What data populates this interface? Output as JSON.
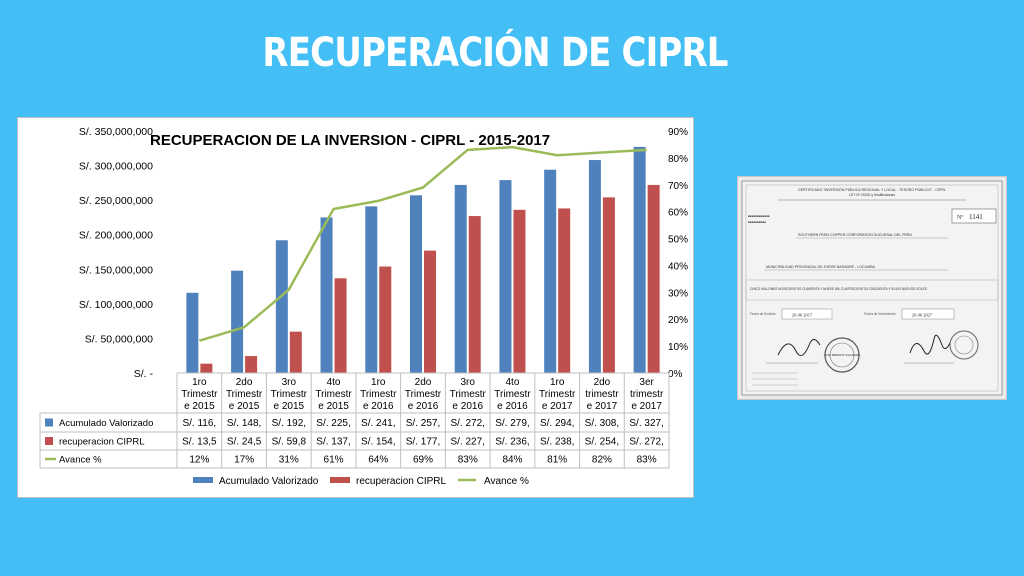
{
  "slide": {
    "title": "RECUPERACIÓN DE CIPRL"
  },
  "chart_data": {
    "type": "bar",
    "title": "RECUPERACION DE LA INVERSION - CIPRL - 2015-2017",
    "categories": [
      [
        "1ro",
        "Trimestr",
        "e 2015"
      ],
      [
        "2do",
        "Trimestr",
        "e 2015"
      ],
      [
        "3ro",
        "Trimestr",
        "e 2015"
      ],
      [
        "4to",
        "Trimestr",
        "e 2015"
      ],
      [
        "1ro",
        "Trimestr",
        "e 2016"
      ],
      [
        "2do",
        "Trimestr",
        "e 2016"
      ],
      [
        "3ro",
        "Trimestr",
        "e 2016"
      ],
      [
        "4to",
        "Trimestr",
        "e 2016"
      ],
      [
        "1ro",
        "Trimestr",
        "e 2017"
      ],
      [
        "2do",
        "trimestr",
        "e 2017"
      ],
      [
        "3er",
        "trimestr",
        "e 2017"
      ]
    ],
    "y_left": {
      "ticks": [
        "S/. 350,000,000",
        "S/. 300,000,000",
        "S/. 250,000,000",
        "S/. 200,000,000",
        "S/. 150,000,000",
        "S/. 100,000,000",
        "S/. 50,000,000",
        "S/. -"
      ],
      "ylim": [
        0,
        350000000
      ]
    },
    "y_right": {
      "ticks": [
        "90%",
        "80%",
        "70%",
        "60%",
        "50%",
        "40%",
        "30%",
        "20%",
        "10%",
        "0%"
      ],
      "ylim": [
        0,
        90
      ]
    },
    "series": [
      {
        "name": "Acumulado Valorizado",
        "type": "bar",
        "color": "#4f81bd",
        "values": [
          116000000,
          148000000,
          192000000,
          225000000,
          241000000,
          257000000,
          272000000,
          279000000,
          294000000,
          308000000,
          327000000
        ],
        "table_labels": [
          "S/. 116,",
          "S/. 148,",
          "S/. 192,",
          "S/. 225,",
          "S/. 241,",
          "S/. 257,",
          "S/. 272,",
          "S/. 279,",
          "S/. 294,",
          "S/. 308,",
          "S/. 327,"
        ]
      },
      {
        "name": "recuperacion CIPRL",
        "type": "bar",
        "color": "#c0504d",
        "values": [
          13500000,
          24500000,
          59800000,
          137000000,
          154000000,
          177000000,
          227000000,
          236000000,
          238000000,
          254000000,
          272000000
        ],
        "table_labels": [
          "S/. 13,5",
          "S/. 24,5",
          "S/. 59,8",
          "S/. 137,",
          "S/. 154,",
          "S/. 177,",
          "S/. 227,",
          "S/. 236,",
          "S/. 238,",
          "S/. 254,",
          "S/. 272,"
        ]
      },
      {
        "name": "Avance %",
        "type": "line",
        "axis": "right",
        "color": "#9bbb59",
        "values": [
          12,
          17,
          31,
          61,
          64,
          69,
          83,
          84,
          81,
          82,
          83
        ],
        "table_labels": [
          "12%",
          "17%",
          "31%",
          "61%",
          "64%",
          "69%",
          "83%",
          "84%",
          "81%",
          "82%",
          "83%"
        ]
      }
    ],
    "grid": false,
    "legend": "bottom"
  },
  "document": {
    "header": "CERTIFICADO \"INVERSIÓN PÚBLICA REGIONAL Y LOCAL - TESORO PÚBLICO\" - CIPRL",
    "law": "LEY Nº 29230 y Modificatorias",
    "number_label": "Nº",
    "number": "1141",
    "company": "SOUTHERN PERU COPPER CORPORATION SUCURSAL DEL PERU",
    "municipality": "MUNICIPALIDAD PROVINCIAL DE JORGE BASADRE - LOCUMBA",
    "amount_text": "CINCO MILLONES NOVECIENTOS CUARENTA Y NUEVE MIL CUATROCIENTOS CINCUENTA Y 51/100 NUEVOS SOLES",
    "issue_date_label": "Fecha de Emisión",
    "issue_date": "26 06 2017",
    "due_date_label": "Fecha de Vencimiento",
    "due_date": "26 06 2027",
    "stamp_text": "JOSE BERRIOS SAAVEDRA"
  }
}
